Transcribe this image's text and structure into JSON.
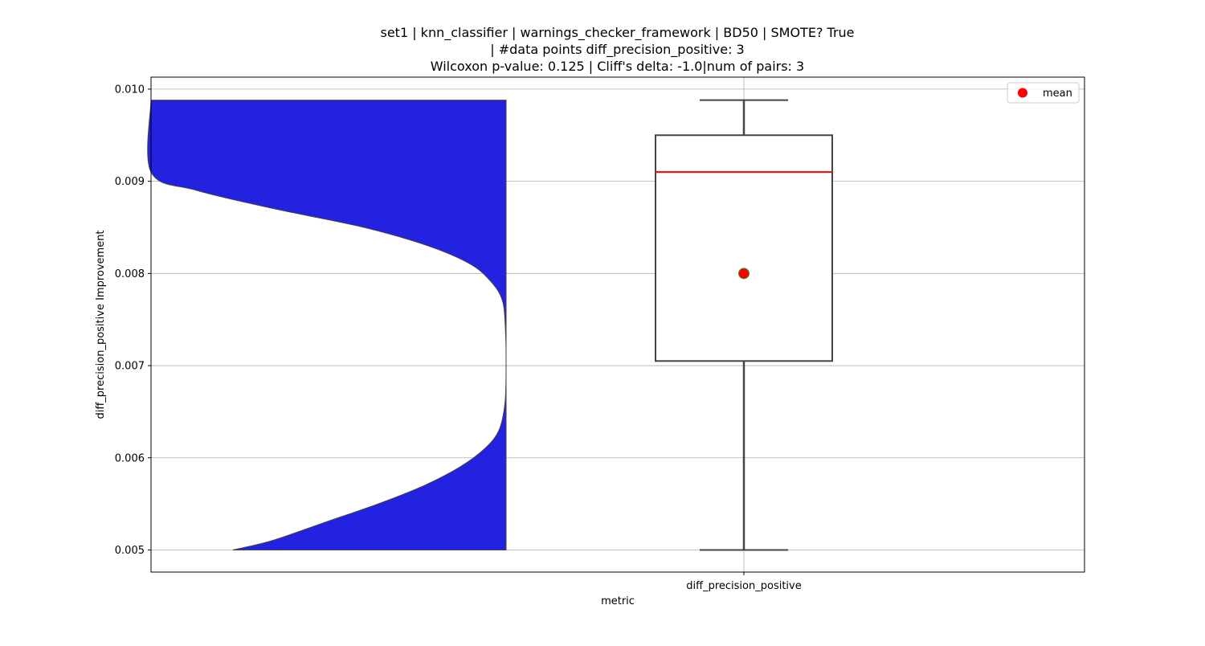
{
  "chart_data": {
    "type": "violin+box",
    "title_lines": [
      "set1 | knn_classifier | warnings_checker_framework | BD50 | SMOTE? True",
      "| #data points diff_precision_positive: 3",
      "Wilcoxon p-value: 0.125 | Cliff's delta: -1.0|num of pairs: 3"
    ],
    "xlabel": "metric",
    "ylabel": "diff_precision_positive Improvement",
    "categories": [
      "diff_precision_positive"
    ],
    "ylim": [
      0.00476,
      0.01013
    ],
    "yticks": [
      0.005,
      0.006,
      0.007,
      0.008,
      0.009,
      0.01
    ],
    "ytick_labels": [
      "0.005",
      "0.006",
      "0.007",
      "0.008",
      "0.009",
      "0.010"
    ],
    "grid": true,
    "legend": {
      "placement": "top-right",
      "entries": [
        {
          "label": "mean",
          "marker": "circle",
          "color": "#ff0000"
        }
      ]
    },
    "violin": {
      "side": "left-half",
      "fill_color": "#2222e0",
      "y_min": 0.005,
      "y_max": 0.00988,
      "density": [
        {
          "y": 0.005,
          "w": 0.77
        },
        {
          "y": 0.0051,
          "w": 0.66
        },
        {
          "y": 0.0053,
          "w": 0.51
        },
        {
          "y": 0.0055,
          "w": 0.36
        },
        {
          "y": 0.0057,
          "w": 0.23
        },
        {
          "y": 0.0059,
          "w": 0.13
        },
        {
          "y": 0.0061,
          "w": 0.06
        },
        {
          "y": 0.0063,
          "w": 0.02
        },
        {
          "y": 0.0066,
          "w": 0.003
        },
        {
          "y": 0.00703,
          "w": 0.0
        },
        {
          "y": 0.0074,
          "w": 0.002
        },
        {
          "y": 0.0077,
          "w": 0.01
        },
        {
          "y": 0.0079,
          "w": 0.04
        },
        {
          "y": 0.0081,
          "w": 0.1
        },
        {
          "y": 0.0083,
          "w": 0.22
        },
        {
          "y": 0.0085,
          "w": 0.4
        },
        {
          "y": 0.0087,
          "w": 0.65
        },
        {
          "y": 0.0089,
          "w": 0.87
        },
        {
          "y": 0.0091,
          "w": 1.0
        },
        {
          "y": 0.00988,
          "w": 1.0
        }
      ]
    },
    "box": {
      "category": "diff_precision_positive",
      "whisker_low": 0.005,
      "q1": 0.00705,
      "median": 0.0091,
      "q3": 0.0095,
      "whisker_high": 0.00988,
      "mean": 0.008,
      "median_color": "#ff0000",
      "mean_color": "#ff0000",
      "mean_edge_color": "#2ca02c"
    }
  }
}
